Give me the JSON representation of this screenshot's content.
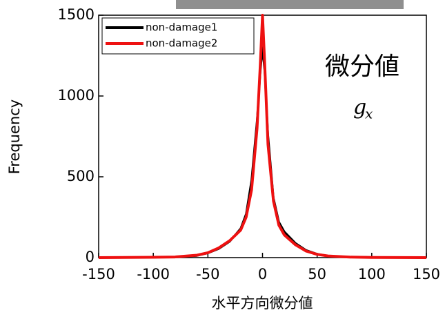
{
  "chart_data": {
    "type": "line",
    "x_label": "水平方向微分値",
    "y_label": "Frequency",
    "annotation": "微分値",
    "formula": {
      "base": "g",
      "subscript": "x"
    },
    "x": [
      -150,
      -100,
      -80,
      -60,
      -50,
      -40,
      -30,
      -20,
      -15,
      -10,
      -5,
      -2,
      0,
      2,
      5,
      10,
      15,
      20,
      30,
      40,
      50,
      60,
      80,
      100,
      150
    ],
    "series": [
      {
        "name": "non-damage1",
        "color": "#000000",
        "values": [
          0,
          2,
          4,
          12,
          28,
          55,
          100,
          180,
          270,
          480,
          850,
          1150,
          1300,
          1150,
          760,
          370,
          220,
          160,
          90,
          45,
          22,
          10,
          4,
          2,
          0
        ]
      },
      {
        "name": "non-damage2",
        "color": "#ee1111",
        "values": [
          0,
          2,
          4,
          15,
          30,
          60,
          105,
          170,
          250,
          420,
          800,
          1200,
          1500,
          1200,
          700,
          350,
          200,
          140,
          80,
          40,
          20,
          10,
          3,
          1,
          0
        ]
      }
    ],
    "xlim": [
      -150,
      150
    ],
    "xticks": [
      -150,
      -100,
      -50,
      0,
      50,
      100,
      150
    ],
    "ylim": [
      0,
      1500
    ],
    "yticks": [
      0,
      500,
      1000,
      1500
    ],
    "legend": "top-left"
  }
}
